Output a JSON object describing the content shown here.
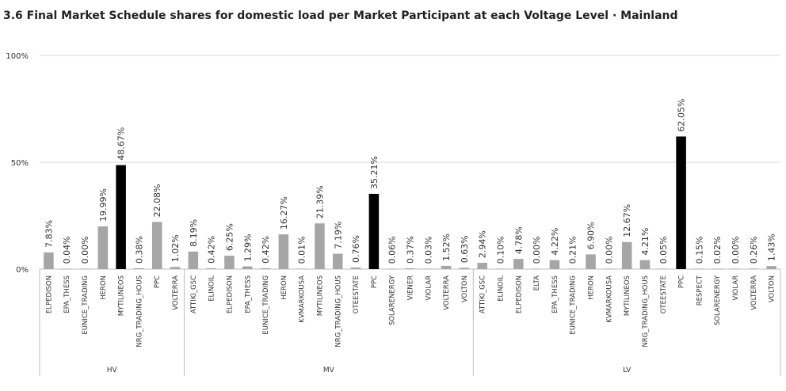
{
  "chart_data": {
    "type": "bar",
    "title": "3.6 Final Market Schedule shares for  domestic load per Market Participant at each Voltage Level · Mainland",
    "ylim": [
      0,
      100
    ],
    "yticks": [
      "0%",
      "50%",
      "100%"
    ],
    "grid": true,
    "legend": "none",
    "colors": {
      "bar": "#a6a6a6",
      "highlight": "#000000",
      "grid": "#d9d9d9",
      "axis": "#bfbfbf"
    },
    "groups": [
      {
        "name": "HV",
        "bars": [
          {
            "category": "ELPEDISON",
            "value": 7.83,
            "label": "7.83%"
          },
          {
            "category": "EPA_THESS",
            "value": 0.04,
            "label": "0.04%"
          },
          {
            "category": "EUNICE_TRADING",
            "value": 0.0,
            "label": "0.00%"
          },
          {
            "category": "HERON",
            "value": 19.99,
            "label": "19.99%"
          },
          {
            "category": "MYTILINEOS",
            "value": 48.67,
            "label": "48.67%",
            "highlight": true
          },
          {
            "category": "NRG_TRADING_HOUS",
            "value": 0.38,
            "label": "0.38%"
          },
          {
            "category": "PPC",
            "value": 22.08,
            "label": "22.08%"
          },
          {
            "category": "VOLTERRA",
            "value": 1.02,
            "label": "1.02%"
          }
        ]
      },
      {
        "name": "MV",
        "bars": [
          {
            "category": "ATTIKI_GSC",
            "value": 8.19,
            "label": "8.19%"
          },
          {
            "category": "ELINOIL",
            "value": 0.42,
            "label": "0.42%"
          },
          {
            "category": "ELPEDISON",
            "value": 6.25,
            "label": "6.25%"
          },
          {
            "category": "EPA_THESS",
            "value": 1.29,
            "label": "1.29%"
          },
          {
            "category": "EUNICE_TRADING",
            "value": 0.42,
            "label": "0.42%"
          },
          {
            "category": "HERON",
            "value": 16.27,
            "label": "16.27%"
          },
          {
            "category": "KVMARKOUSA",
            "value": 0.01,
            "label": "0.01%"
          },
          {
            "category": "MYTILINEOS",
            "value": 21.39,
            "label": "21.39%"
          },
          {
            "category": "NRG_TRADING_HOUS",
            "value": 7.19,
            "label": "7.19%"
          },
          {
            "category": "OTEESTATE",
            "value": 0.76,
            "label": "0.76%"
          },
          {
            "category": "PPC",
            "value": 35.21,
            "label": "35.21%",
            "highlight": true
          },
          {
            "category": "SOLARENERGY",
            "value": 0.06,
            "label": "0.06%"
          },
          {
            "category": "VIENER",
            "value": 0.37,
            "label": "0.37%"
          },
          {
            "category": "VIOLAR",
            "value": 0.03,
            "label": "0.03%"
          },
          {
            "category": "VOLTERRA",
            "value": 1.52,
            "label": "1.52%"
          },
          {
            "category": "VOLTON",
            "value": 0.63,
            "label": "0.63%"
          }
        ]
      },
      {
        "name": "LV",
        "bars": [
          {
            "category": "ATTIKI_GSC",
            "value": 2.94,
            "label": "2.94%"
          },
          {
            "category": "ELINOIL",
            "value": 0.1,
            "label": "0.10%"
          },
          {
            "category": "ELPEDISON",
            "value": 4.78,
            "label": "4.78%"
          },
          {
            "category": "ELTA",
            "value": 0.0,
            "label": "0.00%"
          },
          {
            "category": "EPA_THESS",
            "value": 4.22,
            "label": "4.22%"
          },
          {
            "category": "EUNICE_TRADING",
            "value": 0.21,
            "label": "0.21%"
          },
          {
            "category": "HERON",
            "value": 6.9,
            "label": "6.90%"
          },
          {
            "category": "KVMARKOUSA",
            "value": 0.0,
            "label": "0.00%"
          },
          {
            "category": "MYTILINEOS",
            "value": 12.67,
            "label": "12.67%"
          },
          {
            "category": "NRG_TRADING_HOUS",
            "value": 4.21,
            "label": "4.21%"
          },
          {
            "category": "OTEESTATE",
            "value": 0.05,
            "label": "0.05%"
          },
          {
            "category": "PPC",
            "value": 62.05,
            "label": "62.05%",
            "highlight": true
          },
          {
            "category": "RESPECT",
            "value": 0.15,
            "label": "0.15%"
          },
          {
            "category": "SOLARENERGY",
            "value": 0.02,
            "label": "0.02%"
          },
          {
            "category": "VIOLAR",
            "value": 0.0,
            "label": "0.00%"
          },
          {
            "category": "VOLTERRA",
            "value": 0.26,
            "label": "0.26%"
          },
          {
            "category": "VOLTON",
            "value": 1.43,
            "label": "1.43%"
          }
        ]
      }
    ]
  }
}
